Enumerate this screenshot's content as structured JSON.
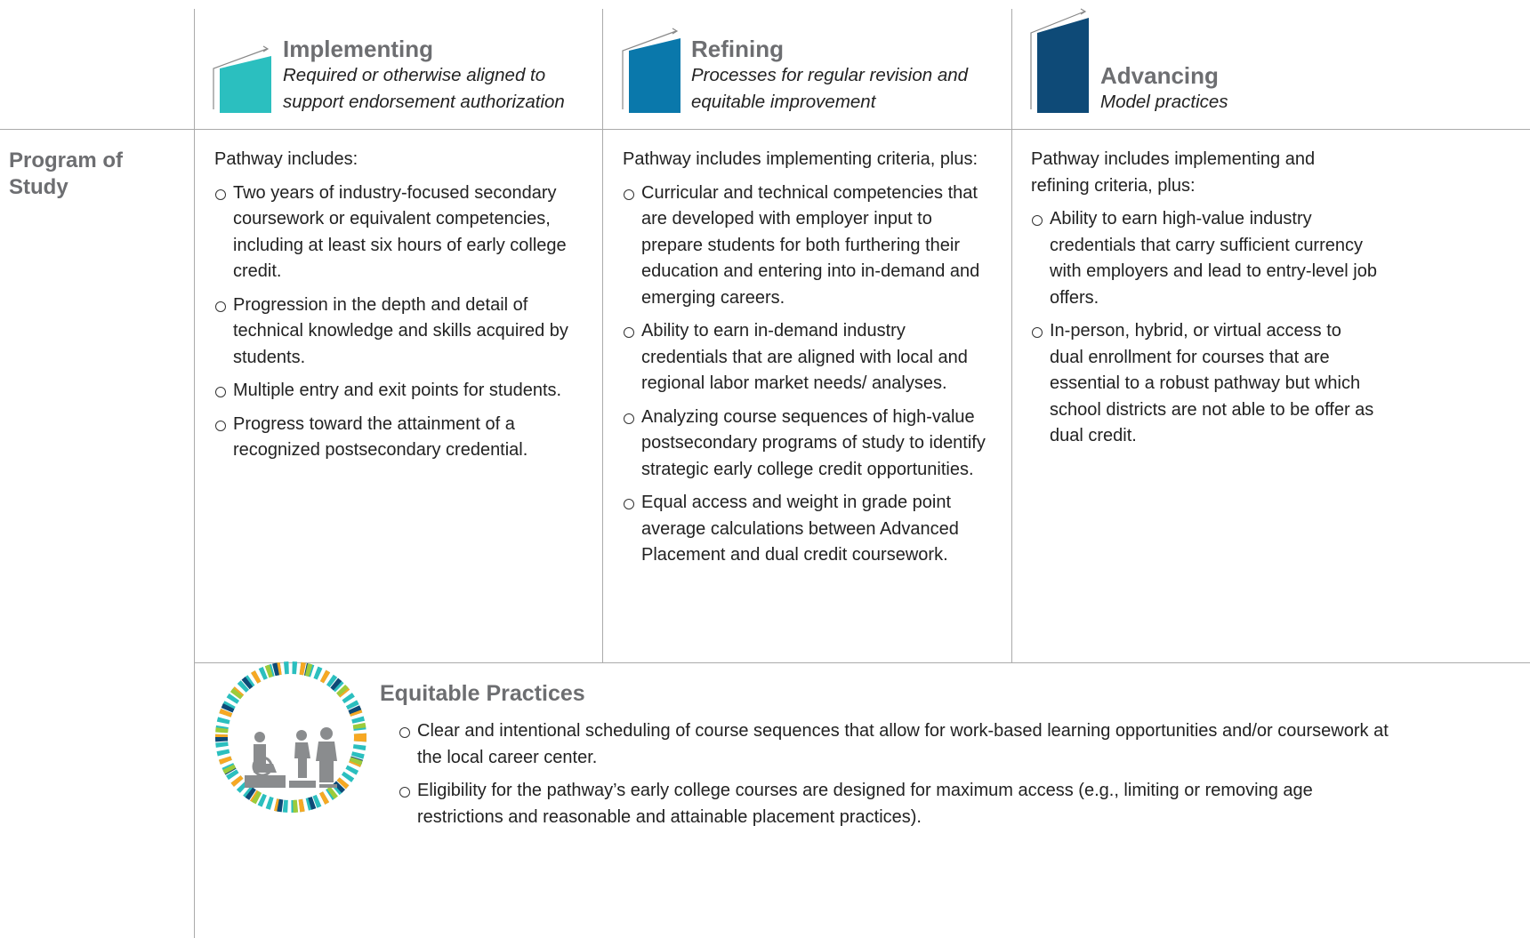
{
  "header": {
    "columns": [
      {
        "title": "Implementing",
        "subtitle": "Required or otherwise aligned to support endorsement authorization"
      },
      {
        "title": "Refining",
        "subtitle": "Processes for regular revision and equitable improvement"
      },
      {
        "title": "Advancing",
        "subtitle": "Model practices"
      }
    ]
  },
  "row": {
    "label": "Program of Study",
    "cells": [
      {
        "intro": "Pathway includes:",
        "items": [
          "Two years of industry-focused secondary coursework or equivalent competencies, including at least six hours of early college credit.",
          "Progression in the depth and detail of technical knowledge and skills acquired by students.",
          "Multiple entry and exit points for students.",
          "Progress toward the attainment of a recognized postsecondary credential."
        ]
      },
      {
        "intro": "Pathway includes implementing criteria, plus:",
        "items": [
          "Curricular and technical competencies that are developed with employer input to prepare students for both furthering their education and entering into in-demand and emerging careers.",
          "Ability to earn in-demand industry credentials that are aligned with local and regional labor market needs/ analyses.",
          "Analyzing course sequences of high-value postsecondary programs of study to identify strategic early college credit opportunities.",
          "Equal access and weight in grade point average calculations between Advanced Placement and dual credit coursework."
        ]
      },
      {
        "intro": "Pathway includes implementing and refining criteria, plus:",
        "items": [
          "Ability to earn high-value industry credentials that carry sufficient currency with employers and lead to entry-level job offers.",
          "In-person, hybrid, or virtual access to dual enrollment for courses that are essential to a robust pathway but which school districts are not able to be offer as dual credit."
        ]
      }
    ]
  },
  "equitable": {
    "title": "Equitable Practices",
    "items": [
      "Clear and intentional scheduling of course sequences that allow for work-based learning opportunities and/or coursework at the local career center.",
      "Eligibility for the pathway’s early college courses are designed for maximum access (e.g., limiting or removing age restrictions and reasonable and attainable placement practices)."
    ]
  }
}
